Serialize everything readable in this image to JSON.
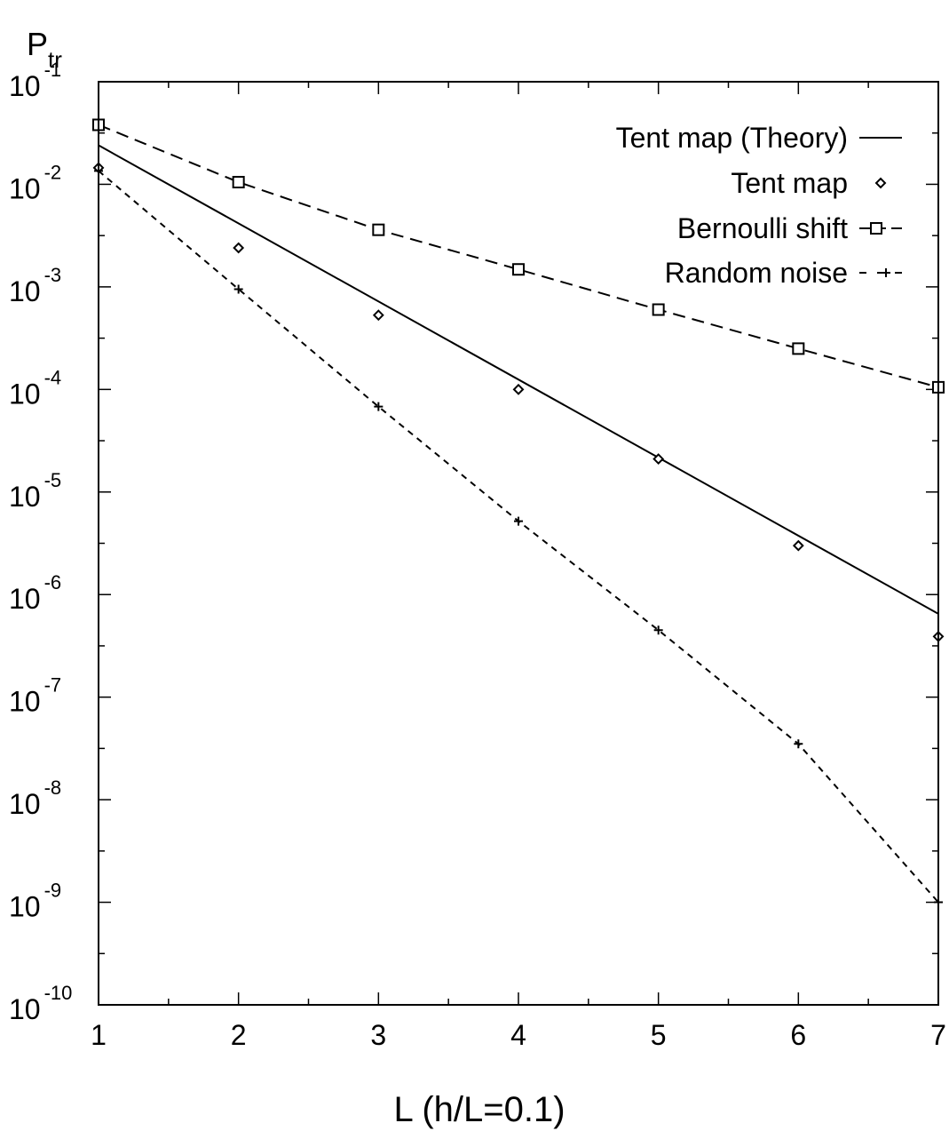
{
  "chart_data": {
    "type": "line",
    "xlabel": "L (h/L=0.1)",
    "ylabel": {
      "main": "P",
      "sub": "tr"
    },
    "xlim": [
      1,
      7
    ],
    "ylim": [
      1e-10,
      0.1
    ],
    "ylog": true,
    "x_ticks": [
      1,
      2,
      3,
      4,
      5,
      6,
      7
    ],
    "x_tick_labels": [
      "1",
      "2",
      "3",
      "4",
      "5",
      "6",
      "7"
    ],
    "y_tick_labels": [
      {
        "base": "10",
        "exp": "-1",
        "value": 0.1
      },
      {
        "base": "10",
        "exp": "-2",
        "value": 0.01
      },
      {
        "base": "10",
        "exp": "-3",
        "value": 0.001
      },
      {
        "base": "10",
        "exp": "-4",
        "value": 0.0001
      },
      {
        "base": "10",
        "exp": "-5",
        "value": 1e-05
      },
      {
        "base": "10",
        "exp": "-6",
        "value": 1e-06
      },
      {
        "base": "10",
        "exp": "-7",
        "value": 1e-07
      },
      {
        "base": "10",
        "exp": "-8",
        "value": 1e-08
      },
      {
        "base": "10",
        "exp": "-9",
        "value": 1e-09
      },
      {
        "base": "10",
        "exp": "-10",
        "value": 1e-10
      }
    ],
    "grid": false,
    "legend_position": "top-right",
    "series": [
      {
        "name": "Tent map (Theory)",
        "style": "solid-line",
        "marker": "none",
        "x": [
          1,
          7
        ],
        "y": [
          0.024,
          6.5e-07
        ]
      },
      {
        "name": "Tent map",
        "style": "none",
        "marker": "diamond",
        "x": [
          1,
          2,
          3,
          4,
          5,
          6,
          7
        ],
        "y": [
          0.0145,
          0.0024,
          0.00053,
          0.0001,
          2.1e-05,
          3e-06,
          3.9e-07
        ]
      },
      {
        "name": "Bernoulli shift",
        "style": "dashed-line",
        "marker": "square",
        "x": [
          1,
          2,
          3,
          4,
          5,
          6,
          7
        ],
        "y": [
          0.038,
          0.0105,
          0.0036,
          0.00148,
          0.0006,
          0.00025,
          0.000105
        ]
      },
      {
        "name": "Random noise",
        "style": "short-dashed-line",
        "marker": "plus",
        "x": [
          1,
          2,
          3,
          4,
          5,
          6,
          7
        ],
        "y": [
          0.0135,
          0.00095,
          6.8e-05,
          5.2e-06,
          4.5e-07,
          3.5e-08,
          1e-09
        ]
      }
    ]
  }
}
